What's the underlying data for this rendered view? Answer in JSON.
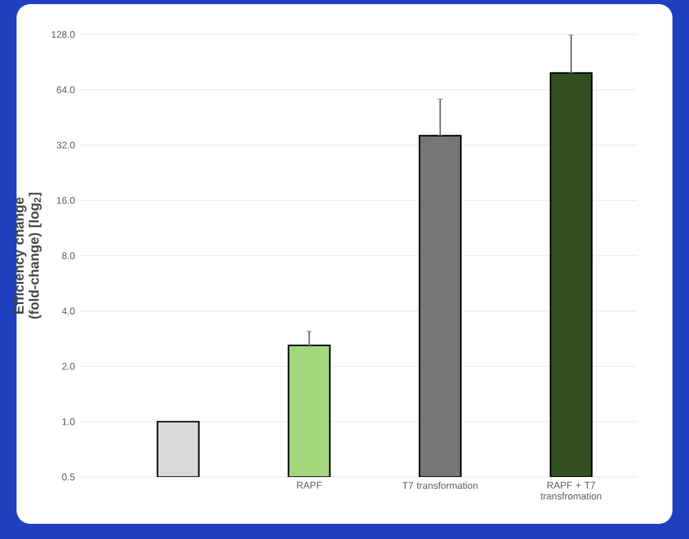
{
  "chart_data": {
    "type": "bar",
    "ylabel": "Efficiency change (fold-change) [log$_{2}$]",
    "categories": [
      null,
      "RAPF",
      "T7 transformation",
      "RAPF + T7 transfromation"
    ],
    "values": [
      1.0,
      2.6,
      36,
      79
    ],
    "colors": [
      "#d9d9d9",
      "#a3d77e",
      "#767676",
      "#334f1f"
    ],
    "errors": [
      null,
      [
        2.6,
        3.1
      ],
      [
        36,
        57
      ],
      [
        79,
        127
      ]
    ],
    "log": "y",
    "ylim": [
      0.5,
      128
    ],
    "yticks": [
      {
        "value": 0.5,
        "label": "0.5"
      },
      {
        "value": 1,
        "label": "1.0"
      },
      {
        "value": 2,
        "label": "2.0"
      },
      {
        "value": 4,
        "label": "4.0"
      },
      {
        "value": 8,
        "label": "8.0"
      },
      {
        "value": 16,
        "label": "16.0"
      },
      {
        "value": 32,
        "label": "32.0"
      },
      {
        "value": 64,
        "label": "64.0"
      },
      {
        "value": 128,
        "label": "128.0"
      }
    ],
    "grid": "y"
  }
}
